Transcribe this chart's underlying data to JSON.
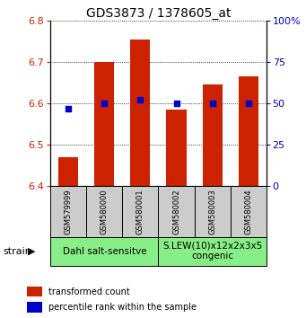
{
  "title": "GDS3873 / 1378605_at",
  "samples": [
    "GSM579999",
    "GSM580000",
    "GSM580001",
    "GSM580002",
    "GSM580003",
    "GSM580004"
  ],
  "bar_values": [
    6.47,
    6.7,
    6.755,
    6.585,
    6.645,
    6.665
  ],
  "bar_bottom": 6.4,
  "percentile_right": [
    47,
    50,
    52,
    50,
    50,
    50
  ],
  "bar_color": "#cc2200",
  "percentile_color": "#0000cc",
  "ylim": [
    6.4,
    6.8
  ],
  "y2lim": [
    0,
    100
  ],
  "yticks": [
    6.4,
    6.5,
    6.6,
    6.7,
    6.8
  ],
  "y2ticks": [
    0,
    25,
    50,
    75,
    100
  ],
  "group1_label": "Dahl salt-sensitve",
  "group2_label": "S.LEW(10)x12x2x3x5\ncongenic",
  "group1_indices": [
    0,
    1,
    2
  ],
  "group2_indices": [
    3,
    4,
    5
  ],
  "green_color": "#88ee88",
  "sample_box_color": "#cccccc",
  "legend_bar_label": "transformed count",
  "legend_pct_label": "percentile rank within the sample",
  "strain_label": "strain",
  "ylabel_color": "#cc2200",
  "y2label_color": "#0000cc",
  "title_fontsize": 10,
  "tick_fontsize": 8,
  "sample_fontsize": 6,
  "legend_fontsize": 7,
  "group_fontsize": 7.5
}
